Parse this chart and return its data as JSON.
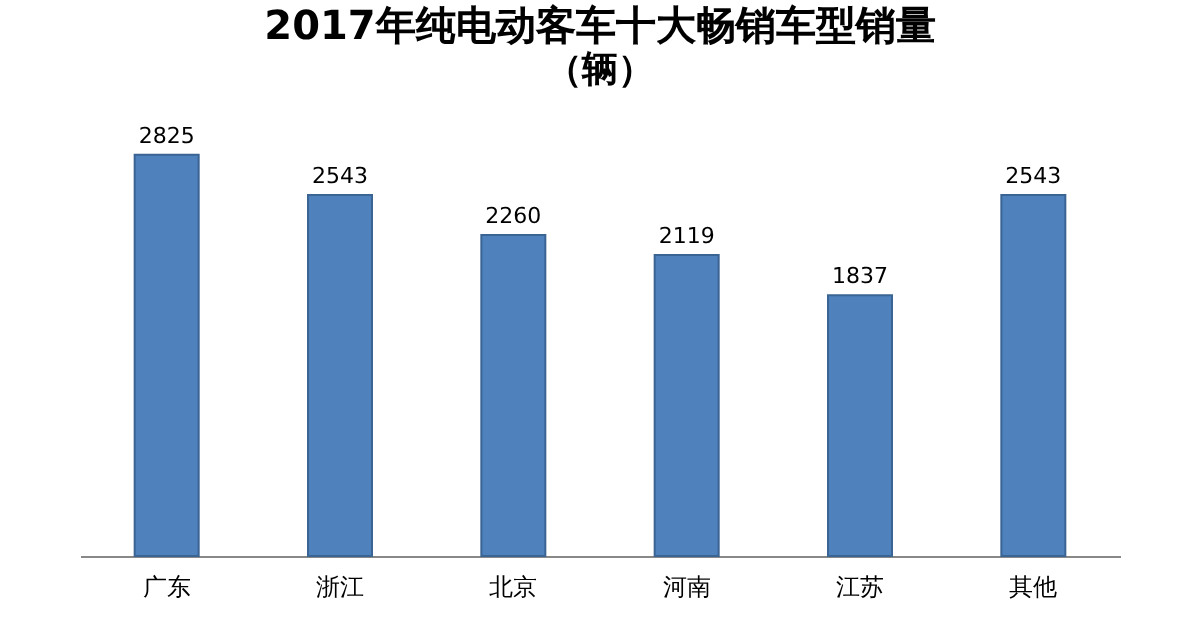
{
  "chart_data": {
    "type": "bar",
    "title": "2017年纯电动客车十大畅销车型销量",
    "subtitle": "（辆）",
    "categories": [
      "广东",
      "浙江",
      "北京",
      "河南",
      "江苏",
      "其他"
    ],
    "values": [
      2825,
      2543,
      2260,
      2119,
      1837,
      2543
    ],
    "color": "#4f81bd",
    "data_labels": true
  }
}
